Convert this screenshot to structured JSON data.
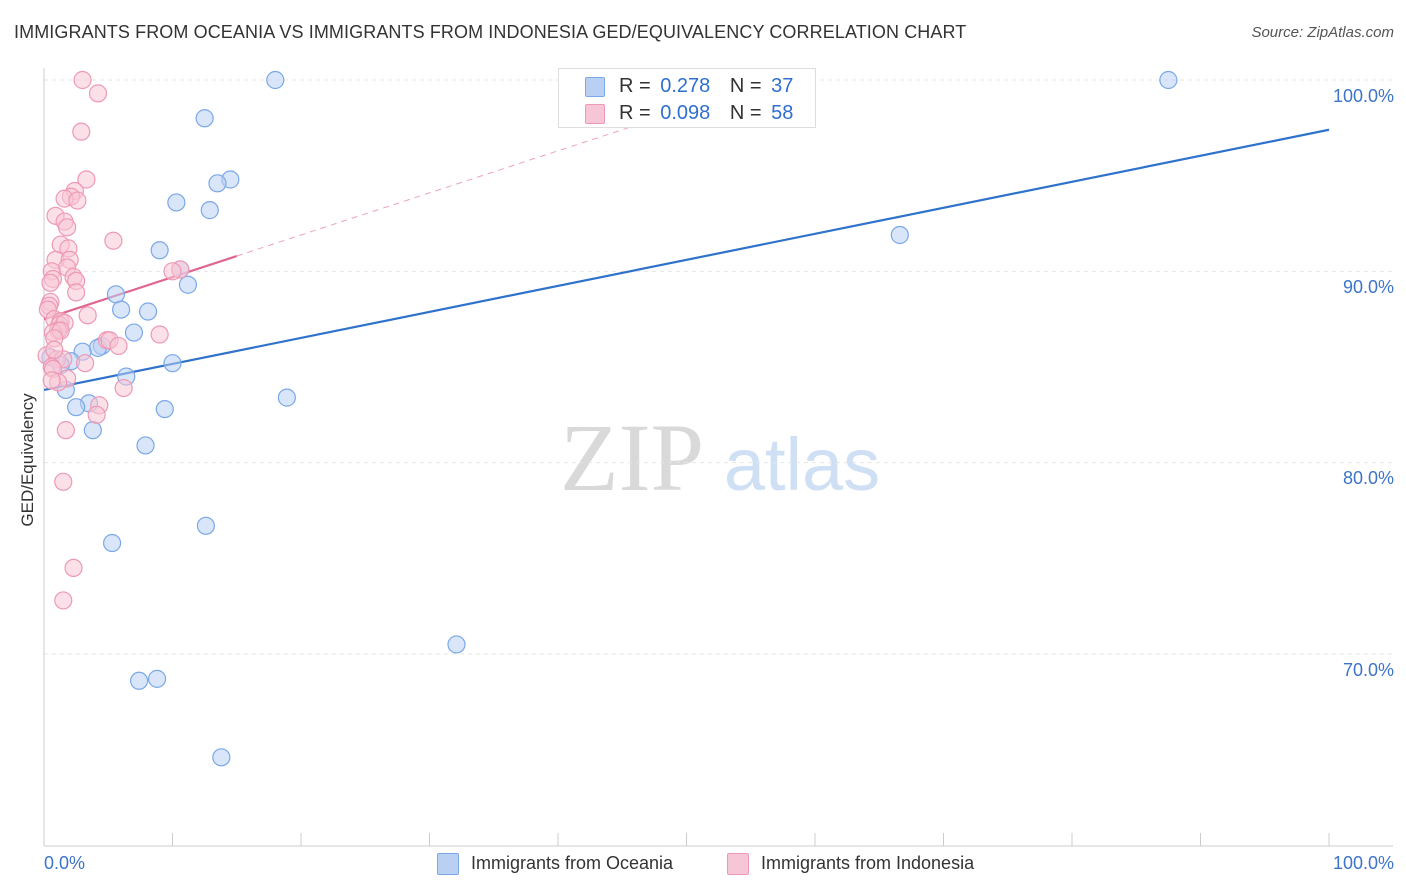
{
  "title": "IMMIGRANTS FROM OCEANIA VS IMMIGRANTS FROM INDONESIA GED/EQUIVALENCY CORRELATION CHART",
  "source": "Source: ZipAtlas.com",
  "watermark": {
    "zip": "ZIP",
    "atlas": "atlas"
  },
  "colors": {
    "oceania": "#7aa8e8",
    "oceania_fill": "#b9d0f3",
    "oceania_line": "#2f72cc",
    "indonesia": "#ee99b5",
    "indonesia_fill": "#f7c6d6",
    "indonesia_line": "#e0668f",
    "axis_text": "#3d74c9"
  },
  "legend": {
    "oceania": {
      "r_label": "R =",
      "r_value": "0.278",
      "n_label": "N =",
      "n_value": "37"
    },
    "indonesia": {
      "r_label": "R =",
      "r_value": "0.098",
      "n_label": "N =",
      "n_value": "58"
    }
  },
  "chart_data": {
    "type": "scatter",
    "title": "IMMIGRANTS FROM OCEANIA VS IMMIGRANTS FROM INDONESIA GED/EQUIVALENCY CORRELATION CHART",
    "xlabel": "",
    "ylabel": "GED/Equivalency",
    "xlim": [
      0,
      100
    ],
    "ylim": [
      61,
      101.5
    ],
    "x_tick_labels": [
      "0.0%",
      "100.0%"
    ],
    "y_ticks": [
      {
        "value": 70,
        "label": "70.0%"
      },
      {
        "value": 80,
        "label": "80.0%"
      },
      {
        "value": 90,
        "label": "90.0%"
      },
      {
        "value": 100,
        "label": "100.0%"
      }
    ],
    "legend_position": "bottom-center",
    "series": [
      {
        "name": "Immigrants from Oceania",
        "key": "oceania",
        "R": 0.278,
        "N": 37,
        "trend": {
          "x": [
            0,
            100
          ],
          "y": [
            83.8,
            97.4
          ],
          "style": "solid"
        },
        "points": [
          [
            18,
            100
          ],
          [
            87.5,
            100
          ],
          [
            12.5,
            98
          ],
          [
            14.5,
            94.8
          ],
          [
            13.5,
            94.6
          ],
          [
            10.3,
            93.6
          ],
          [
            12.9,
            93.2
          ],
          [
            9,
            91.1
          ],
          [
            10.6,
            90.1
          ],
          [
            66.6,
            91.9
          ],
          [
            11.2,
            89.3
          ],
          [
            5.6,
            88.8
          ],
          [
            6,
            88
          ],
          [
            8.1,
            87.9
          ],
          [
            7,
            86.8
          ],
          [
            1.2,
            87
          ],
          [
            4.5,
            86.1
          ],
          [
            4.2,
            86
          ],
          [
            3,
            85.8
          ],
          [
            2.1,
            85.3
          ],
          [
            1.3,
            85.1
          ],
          [
            10,
            85.2
          ],
          [
            6.4,
            84.5
          ],
          [
            1.7,
            83.8
          ],
          [
            18.9,
            83.4
          ],
          [
            3.5,
            83.1
          ],
          [
            2.5,
            82.9
          ],
          [
            9.4,
            82.8
          ],
          [
            3.8,
            81.7
          ],
          [
            7.9,
            80.9
          ],
          [
            12.6,
            76.7
          ],
          [
            5.3,
            75.8
          ],
          [
            32.1,
            70.5
          ],
          [
            8.8,
            68.7
          ],
          [
            7.4,
            68.6
          ],
          [
            13.8,
            64.6
          ],
          [
            0.5,
            85.5
          ]
        ]
      },
      {
        "name": "Immigrants from Indonesia",
        "key": "indonesia",
        "R": 0.098,
        "N": 58,
        "trend": {
          "x": [
            0,
            15
          ],
          "y": [
            87.5,
            90.8
          ],
          "style": "solid",
          "dashed_extension": {
            "x": [
              15,
              100
            ],
            "y": [
              90.8,
              109.5
            ]
          }
        },
        "points": [
          [
            3,
            100
          ],
          [
            4.2,
            99.3
          ],
          [
            2.9,
            97.3
          ],
          [
            3.3,
            94.8
          ],
          [
            2.4,
            94.2
          ],
          [
            2.1,
            93.9
          ],
          [
            1.6,
            93.8
          ],
          [
            2.6,
            93.7
          ],
          [
            0.9,
            92.9
          ],
          [
            1.6,
            92.6
          ],
          [
            1.8,
            92.3
          ],
          [
            5.4,
            91.6
          ],
          [
            1.3,
            91.4
          ],
          [
            1.9,
            91.2
          ],
          [
            0.9,
            90.6
          ],
          [
            2,
            90.6
          ],
          [
            1.8,
            90.2
          ],
          [
            10.6,
            90.1
          ],
          [
            10,
            90
          ],
          [
            0.6,
            90
          ],
          [
            0.7,
            89.6
          ],
          [
            2.3,
            89.7
          ],
          [
            2.5,
            89.5
          ],
          [
            0.5,
            89.4
          ],
          [
            2.5,
            88.9
          ],
          [
            0.5,
            88.4
          ],
          [
            0.4,
            88.2
          ],
          [
            0.3,
            88
          ],
          [
            3.4,
            87.7
          ],
          [
            0.8,
            87.5
          ],
          [
            1.3,
            87.4
          ],
          [
            1.2,
            87.2
          ],
          [
            1.6,
            87.3
          ],
          [
            1.1,
            86.9
          ],
          [
            0.7,
            86.8
          ],
          [
            1.3,
            86.9
          ],
          [
            0.8,
            86.5
          ],
          [
            9,
            86.7
          ],
          [
            4.9,
            86.4
          ],
          [
            5.1,
            86.4
          ],
          [
            5.8,
            86.1
          ],
          [
            0.2,
            85.6
          ],
          [
            1,
            85.4
          ],
          [
            1.5,
            85.4
          ],
          [
            0.6,
            85
          ],
          [
            0.7,
            84.9
          ],
          [
            1.8,
            84.4
          ],
          [
            1.1,
            84.2
          ],
          [
            0.6,
            84.3
          ],
          [
            6.2,
            83.9
          ],
          [
            4.3,
            83
          ],
          [
            4.1,
            82.5
          ],
          [
            1.7,
            81.7
          ],
          [
            1.5,
            79
          ],
          [
            2.3,
            74.5
          ],
          [
            1.5,
            72.8
          ],
          [
            0.8,
            85.9
          ],
          [
            3.2,
            85.2
          ]
        ]
      }
    ]
  }
}
